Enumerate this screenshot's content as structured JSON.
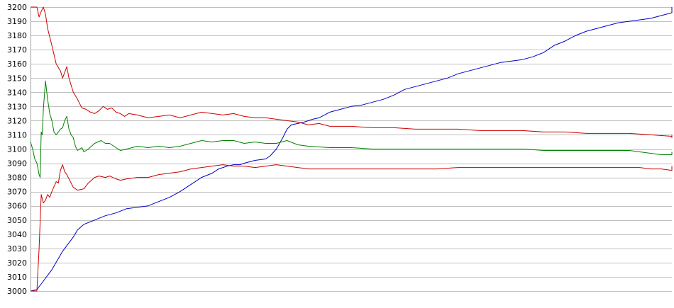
{
  "chart_data": {
    "type": "line",
    "title": "",
    "xlabel": "",
    "ylabel": "",
    "grid": true,
    "legend": "none",
    "xlim": [
      0,
      300
    ],
    "ylim": [
      3000,
      3200
    ],
    "ytick_step": 10,
    "yticks": [
      "3000",
      "3010",
      "3020",
      "3030",
      "3040",
      "3050",
      "3060",
      "3070",
      "3080",
      "3090",
      "3100",
      "3110",
      "3120",
      "3130",
      "3140",
      "3150",
      "3160",
      "3170",
      "3180",
      "3190",
      "3200"
    ],
    "series": [
      {
        "color": "#0000cc",
        "points": [
          [
            0,
            3000
          ],
          [
            3,
            3001
          ],
          [
            5,
            3005
          ],
          [
            10,
            3015
          ],
          [
            15,
            3028
          ],
          [
            20,
            3038
          ],
          [
            22,
            3043
          ],
          [
            25,
            3047
          ],
          [
            30,
            3050
          ],
          [
            35,
            3053
          ],
          [
            40,
            3055
          ],
          [
            45,
            3058
          ],
          [
            50,
            3059
          ],
          [
            55,
            3060
          ],
          [
            60,
            3063
          ],
          [
            65,
            3066
          ],
          [
            70,
            3070
          ],
          [
            75,
            3075
          ],
          [
            80,
            3080
          ],
          [
            85,
            3083
          ],
          [
            88,
            3086
          ],
          [
            92,
            3088
          ],
          [
            95,
            3089
          ],
          [
            98,
            3089
          ],
          [
            100,
            3090
          ],
          [
            105,
            3092
          ],
          [
            110,
            3093
          ],
          [
            112,
            3095
          ],
          [
            115,
            3100
          ],
          [
            118,
            3108
          ],
          [
            120,
            3114
          ],
          [
            122,
            3117
          ],
          [
            125,
            3118
          ],
          [
            128,
            3119
          ],
          [
            132,
            3121
          ],
          [
            135,
            3122
          ],
          [
            140,
            3126
          ],
          [
            145,
            3128
          ],
          [
            150,
            3130
          ],
          [
            155,
            3131
          ],
          [
            160,
            3133
          ],
          [
            165,
            3135
          ],
          [
            170,
            3138
          ],
          [
            175,
            3142
          ],
          [
            180,
            3144
          ],
          [
            185,
            3146
          ],
          [
            190,
            3148
          ],
          [
            195,
            3150
          ],
          [
            200,
            3153
          ],
          [
            205,
            3155
          ],
          [
            210,
            3157
          ],
          [
            215,
            3159
          ],
          [
            220,
            3161
          ],
          [
            225,
            3162
          ],
          [
            230,
            3163
          ],
          [
            235,
            3165
          ],
          [
            240,
            3168
          ],
          [
            245,
            3173
          ],
          [
            250,
            3176
          ],
          [
            255,
            3180
          ],
          [
            260,
            3183
          ],
          [
            265,
            3185
          ],
          [
            270,
            3187
          ],
          [
            275,
            3189
          ],
          [
            280,
            3190
          ],
          [
            285,
            3191
          ],
          [
            290,
            3192
          ],
          [
            295,
            3194
          ],
          [
            300,
            3196
          ],
          [
            305,
            3198
          ],
          [
            310,
            3199
          ],
          [
            313,
            3200
          ]
        ]
      },
      {
        "color": "#cc0000",
        "points": [
          [
            0,
            3200
          ],
          [
            3,
            3200
          ],
          [
            4,
            3193
          ],
          [
            5,
            3197
          ],
          [
            6,
            3200
          ],
          [
            7,
            3195
          ],
          [
            8,
            3185
          ],
          [
            10,
            3173
          ],
          [
            12,
            3160
          ],
          [
            14,
            3155
          ],
          [
            15,
            3150
          ],
          [
            17,
            3158
          ],
          [
            18,
            3150
          ],
          [
            20,
            3140
          ],
          [
            22,
            3135
          ],
          [
            24,
            3129
          ],
          [
            26,
            3128
          ],
          [
            28,
            3126
          ],
          [
            30,
            3125
          ],
          [
            32,
            3127
          ],
          [
            34,
            3130
          ],
          [
            36,
            3128
          ],
          [
            38,
            3129
          ],
          [
            40,
            3126
          ],
          [
            42,
            3125
          ],
          [
            44,
            3123
          ],
          [
            46,
            3125
          ],
          [
            50,
            3124
          ],
          [
            55,
            3122
          ],
          [
            60,
            3123
          ],
          [
            65,
            3124
          ],
          [
            70,
            3122
          ],
          [
            75,
            3124
          ],
          [
            80,
            3126
          ],
          [
            85,
            3125
          ],
          [
            90,
            3124
          ],
          [
            95,
            3125
          ],
          [
            100,
            3123
          ],
          [
            105,
            3122
          ],
          [
            110,
            3122
          ],
          [
            115,
            3121
          ],
          [
            120,
            3120
          ],
          [
            125,
            3119
          ],
          [
            130,
            3117
          ],
          [
            135,
            3118
          ],
          [
            140,
            3116
          ],
          [
            150,
            3116
          ],
          [
            160,
            3115
          ],
          [
            170,
            3115
          ],
          [
            180,
            3114
          ],
          [
            190,
            3114
          ],
          [
            200,
            3114
          ],
          [
            210,
            3113
          ],
          [
            220,
            3113
          ],
          [
            230,
            3113
          ],
          [
            240,
            3112
          ],
          [
            250,
            3112
          ],
          [
            260,
            3111
          ],
          [
            270,
            3111
          ],
          [
            280,
            3111
          ],
          [
            290,
            3110
          ],
          [
            300,
            3109
          ],
          [
            305,
            3109
          ],
          [
            308,
            3108
          ],
          [
            313,
            3110
          ]
        ]
      },
      {
        "color": "#008000",
        "points": [
          [
            0,
            3105
          ],
          [
            1,
            3100
          ],
          [
            2,
            3093
          ],
          [
            3,
            3090
          ],
          [
            4,
            3082
          ],
          [
            4.5,
            3080
          ],
          [
            5,
            3112
          ],
          [
            5.5,
            3110
          ],
          [
            6,
            3128
          ],
          [
            7,
            3148
          ],
          [
            8,
            3135
          ],
          [
            9,
            3125
          ],
          [
            10,
            3120
          ],
          [
            11,
            3112
          ],
          [
            12,
            3110
          ],
          [
            13,
            3112
          ],
          [
            14,
            3114
          ],
          [
            15,
            3115
          ],
          [
            16,
            3120
          ],
          [
            17,
            3123
          ],
          [
            18,
            3114
          ],
          [
            19,
            3110
          ],
          [
            20,
            3108
          ],
          [
            21,
            3102
          ],
          [
            22,
            3099
          ],
          [
            23,
            3100
          ],
          [
            24,
            3101
          ],
          [
            25,
            3098
          ],
          [
            27,
            3100
          ],
          [
            30,
            3104
          ],
          [
            33,
            3106
          ],
          [
            35,
            3104
          ],
          [
            37,
            3104
          ],
          [
            40,
            3101
          ],
          [
            42,
            3099
          ],
          [
            45,
            3100
          ],
          [
            50,
            3102
          ],
          [
            55,
            3101
          ],
          [
            60,
            3102
          ],
          [
            65,
            3101
          ],
          [
            70,
            3102
          ],
          [
            75,
            3104
          ],
          [
            80,
            3106
          ],
          [
            85,
            3105
          ],
          [
            90,
            3106
          ],
          [
            95,
            3106
          ],
          [
            100,
            3104
          ],
          [
            105,
            3105
          ],
          [
            110,
            3104
          ],
          [
            115,
            3104
          ],
          [
            120,
            3106
          ],
          [
            125,
            3103
          ],
          [
            130,
            3102
          ],
          [
            140,
            3101
          ],
          [
            150,
            3101
          ],
          [
            160,
            3100
          ],
          [
            170,
            3100
          ],
          [
            180,
            3100
          ],
          [
            190,
            3100
          ],
          [
            200,
            3100
          ],
          [
            210,
            3100
          ],
          [
            220,
            3100
          ],
          [
            230,
            3100
          ],
          [
            240,
            3099
          ],
          [
            250,
            3099
          ],
          [
            260,
            3099
          ],
          [
            270,
            3099
          ],
          [
            280,
            3099
          ],
          [
            285,
            3098
          ],
          [
            290,
            3097
          ],
          [
            295,
            3096
          ],
          [
            300,
            3096
          ],
          [
            305,
            3096
          ],
          [
            308,
            3096
          ],
          [
            313,
            3098
          ]
        ]
      },
      {
        "color": "#cc0000",
        "points": [
          [
            0,
            3000
          ],
          [
            3,
            3000
          ],
          [
            4,
            3030
          ],
          [
            5,
            3068
          ],
          [
            6,
            3062
          ],
          [
            7,
            3064
          ],
          [
            8,
            3068
          ],
          [
            9,
            3066
          ],
          [
            10,
            3070
          ],
          [
            12,
            3077
          ],
          [
            13,
            3076
          ],
          [
            14,
            3085
          ],
          [
            15,
            3089
          ],
          [
            16,
            3084
          ],
          [
            17,
            3082
          ],
          [
            18,
            3079
          ],
          [
            20,
            3073
          ],
          [
            22,
            3071
          ],
          [
            25,
            3072
          ],
          [
            27,
            3076
          ],
          [
            30,
            3080
          ],
          [
            32,
            3081
          ],
          [
            35,
            3080
          ],
          [
            37,
            3081
          ],
          [
            40,
            3079
          ],
          [
            42,
            3078
          ],
          [
            45,
            3079
          ],
          [
            50,
            3080
          ],
          [
            55,
            3080
          ],
          [
            60,
            3082
          ],
          [
            65,
            3083
          ],
          [
            70,
            3084
          ],
          [
            75,
            3086
          ],
          [
            80,
            3087
          ],
          [
            85,
            3088
          ],
          [
            90,
            3089
          ],
          [
            95,
            3088
          ],
          [
            100,
            3088
          ],
          [
            105,
            3087
          ],
          [
            110,
            3088
          ],
          [
            115,
            3089
          ],
          [
            120,
            3088
          ],
          [
            125,
            3087
          ],
          [
            130,
            3086
          ],
          [
            140,
            3086
          ],
          [
            150,
            3086
          ],
          [
            160,
            3086
          ],
          [
            170,
            3086
          ],
          [
            180,
            3086
          ],
          [
            190,
            3086
          ],
          [
            200,
            3087
          ],
          [
            210,
            3087
          ],
          [
            220,
            3087
          ],
          [
            230,
            3087
          ],
          [
            240,
            3087
          ],
          [
            250,
            3087
          ],
          [
            260,
            3087
          ],
          [
            270,
            3087
          ],
          [
            280,
            3087
          ],
          [
            285,
            3087
          ],
          [
            290,
            3086
          ],
          [
            295,
            3086
          ],
          [
            300,
            3085
          ],
          [
            305,
            3085
          ],
          [
            308,
            3086
          ],
          [
            313,
            3088
          ]
        ]
      }
    ]
  }
}
